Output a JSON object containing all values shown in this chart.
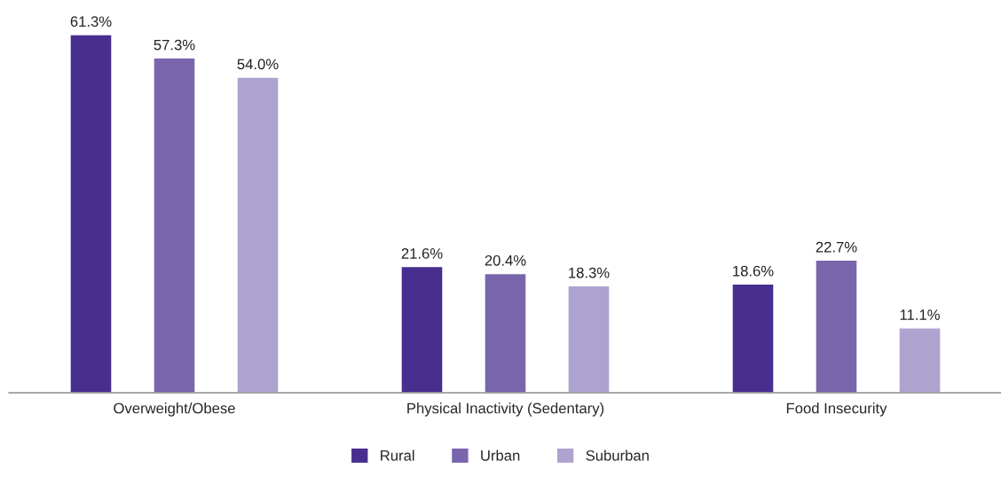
{
  "chart_data": {
    "type": "bar",
    "categories": [
      "Overweight/Obese",
      "Physical Inactivity (Sedentary)",
      "Food Insecurity"
    ],
    "series": [
      {
        "name": "Rural",
        "color": "#482e8f",
        "values": [
          61.3,
          21.6,
          18.6
        ],
        "value_labels": [
          "61.3%",
          "21.6%",
          "18.6%"
        ]
      },
      {
        "name": "Urban",
        "color": "#7965ab",
        "values": [
          57.3,
          20.4,
          22.7
        ],
        "value_labels": [
          "57.3%",
          "20.4%",
          "22.7%"
        ]
      },
      {
        "name": "Suburban",
        "color": "#aea3ce",
        "values": [
          54.0,
          18.3,
          11.1
        ],
        "value_labels": [
          "54.0%",
          "18.3%",
          "11.1%"
        ]
      }
    ],
    "legend": "bottom",
    "grid": false
  }
}
